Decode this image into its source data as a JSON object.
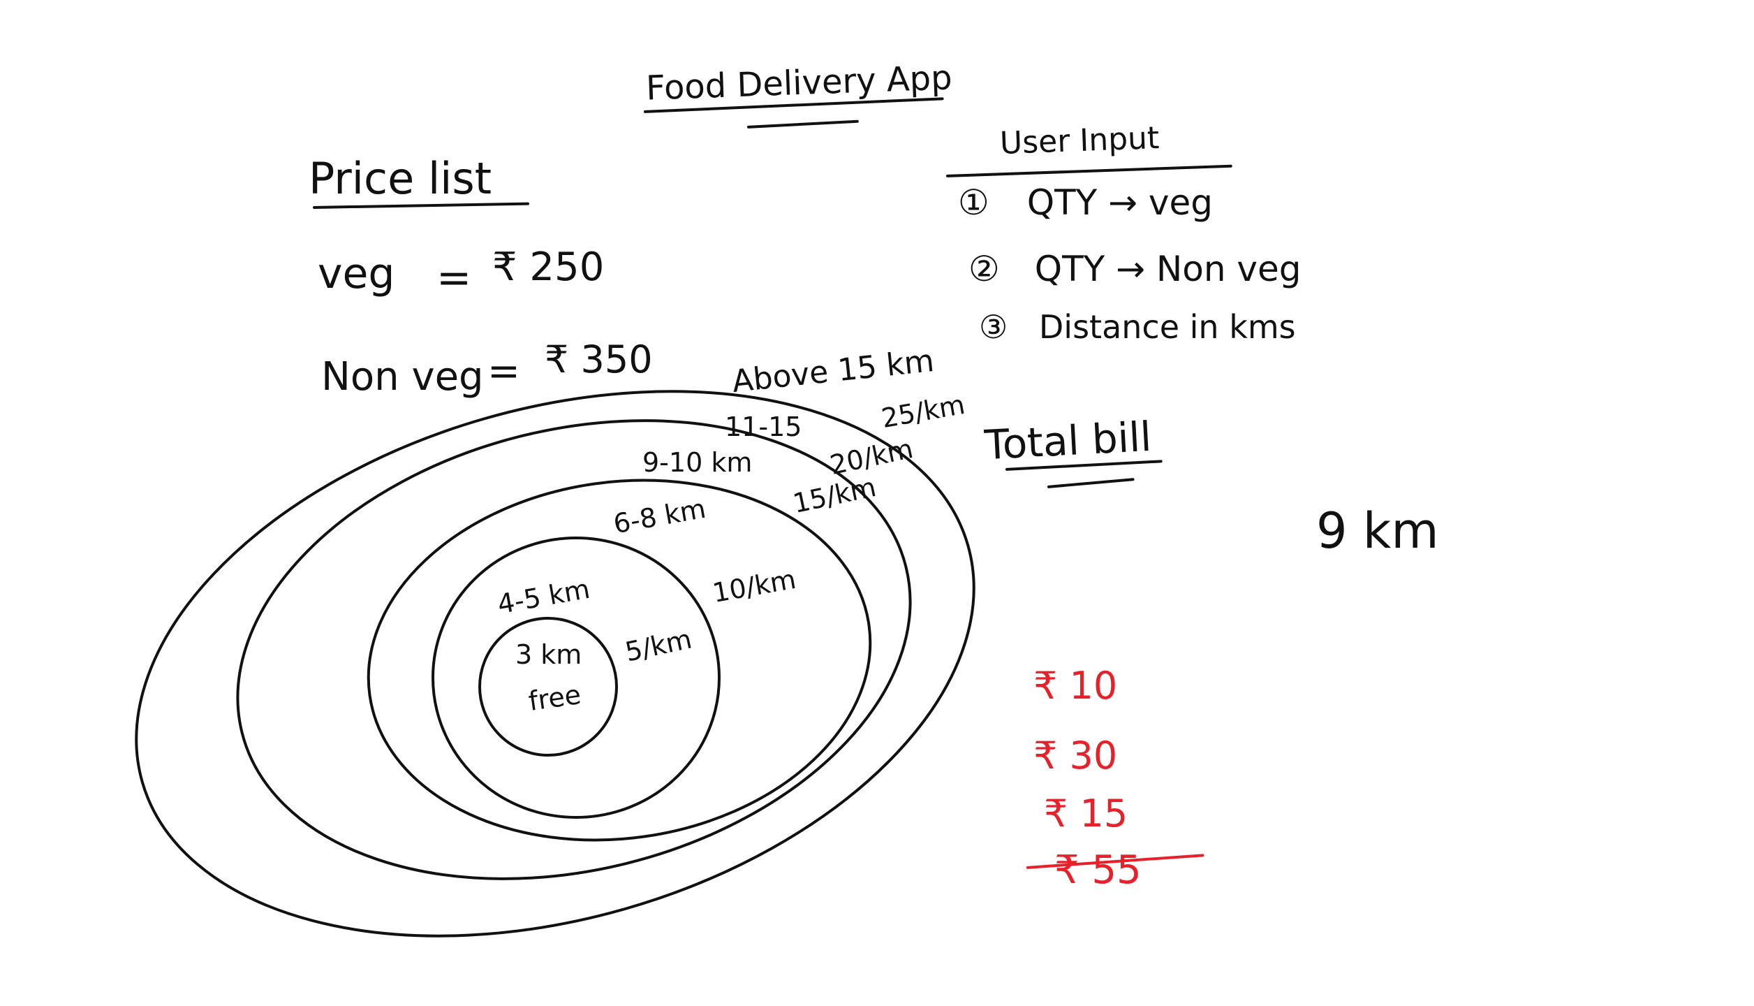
{
  "title": "Food Delivery App",
  "price_list": {
    "heading": "Price list",
    "items": [
      {
        "label": "veg",
        "equals": "=",
        "price": "₹ 250"
      },
      {
        "label": "Non veg",
        "equals": "=",
        "price": "₹ 350"
      }
    ]
  },
  "user_input": {
    "heading": "User Input",
    "items": [
      {
        "number": "①",
        "text": "QTY → veg"
      },
      {
        "number": "②",
        "text": "QTY → Non veg"
      },
      {
        "number": "③",
        "text": "Distance in kms"
      }
    ]
  },
  "total_bill": {
    "heading": "Total bill",
    "distance": "9 km",
    "lines": [
      "₹ 10",
      "₹ 30",
      "₹ 15"
    ],
    "total": "₹ 55",
    "color": "#e8202a"
  },
  "zones": {
    "rings": [
      {
        "range": "3 km",
        "note": "free"
      },
      {
        "range": "4-5 km",
        "rate": "5/km"
      },
      {
        "range": "6-8 km",
        "rate": "10/km"
      },
      {
        "range": "9-10 km",
        "rate": "15/km"
      },
      {
        "range": "11-15",
        "rate": "20/km"
      },
      {
        "range": "Above 15 km",
        "rate": "25/km"
      }
    ]
  }
}
